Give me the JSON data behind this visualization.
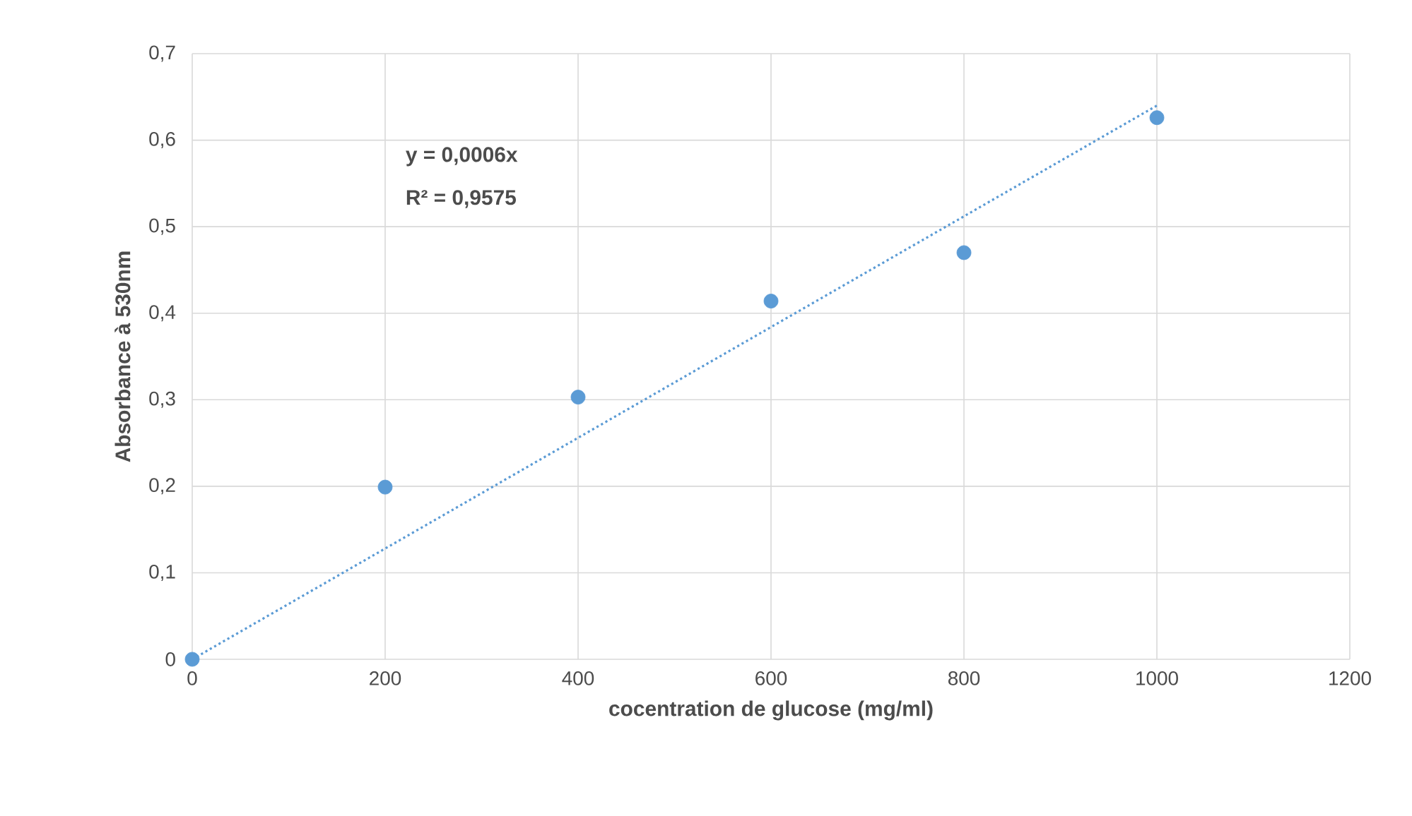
{
  "chart_data": {
    "type": "scatter",
    "xlabel": "cocentration de glucose (mg/ml)",
    "ylabel": "Absorbance à 530nm",
    "series": [
      {
        "color": "#5b9bd5",
        "marker": "circle",
        "x": [
          0,
          200,
          400,
          600,
          800,
          1000
        ],
        "values": [
          0,
          0.199,
          0.303,
          0.414,
          0.47,
          0.626
        ]
      },
      {
        "type": "line",
        "color": "#5b9bd5",
        "line_style": "dotted",
        "marker": "none",
        "x": [
          0,
          1000
        ],
        "values": [
          0,
          0.64
        ]
      }
    ],
    "annotations": [
      "y = 0,0006x",
      "R² = 0,9575"
    ],
    "xlim": [
      0,
      1200
    ],
    "xticks": [
      0,
      200,
      400,
      600,
      800,
      1000,
      1200
    ],
    "ylim": [
      0,
      0.7
    ],
    "yticks": [
      0,
      {
        "value": 0.1,
        "label": "0,1"
      },
      {
        "value": 0.2,
        "label": "0,2"
      },
      {
        "value": 0.3,
        "label": "0,3"
      },
      {
        "value": 0.4,
        "label": "0,4"
      },
      {
        "value": 0.5,
        "label": "0,5"
      },
      {
        "value": 0.6,
        "label": "0,6"
      },
      {
        "value": 0.7,
        "label": "0,7"
      }
    ],
    "grid": true
  }
}
